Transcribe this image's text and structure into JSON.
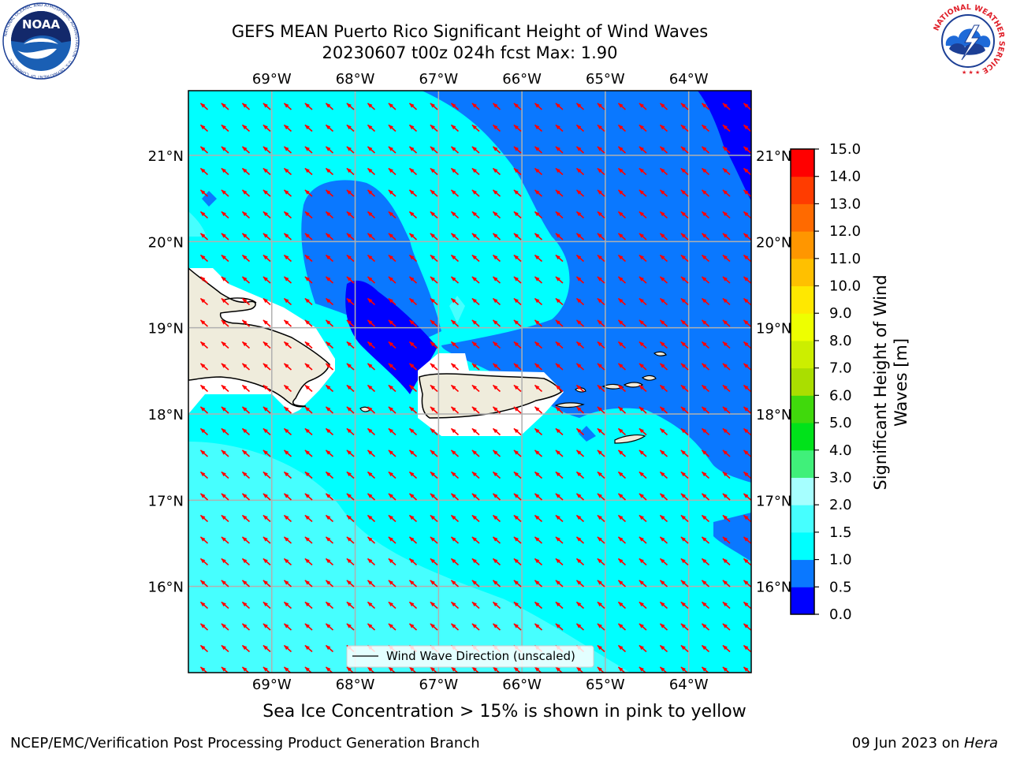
{
  "title_line1": "GEFS MEAN Puerto Rico Significant Height of Wind Waves",
  "title_line2": "20230607 t00z 024h fcst   Max: 1.90",
  "logos": {
    "left": {
      "name": "noaa-logo",
      "text": "NOAA",
      "ring": "NATIONAL OCEANIC AND ATMOSPHERIC ADMINISTRATION · U.S. DEPARTMENT OF COMMERCE"
    },
    "right": {
      "name": "nws-logo",
      "ring": "NATIONAL WEATHER SERVICE"
    }
  },
  "map": {
    "lon_labels": [
      "69°W",
      "68°W",
      "67°W",
      "66°W",
      "65°W",
      "64°W"
    ],
    "lon_values": [
      -69,
      -68,
      -67,
      -66,
      -65,
      -64
    ],
    "lat_labels": [
      "21°N",
      "20°N",
      "19°N",
      "18°N",
      "17°N",
      "16°N"
    ],
    "lat_values": [
      21,
      20,
      19,
      18,
      17,
      16
    ],
    "lon_range": [
      -70,
      -63.25
    ],
    "lat_range": [
      15,
      21.75
    ],
    "legend_label": "Wind Wave Direction (unscaled)",
    "arrow_color": "#ff0000",
    "land_color": "#efecdc",
    "grid_color": "#b0b0b0"
  },
  "colorbar": {
    "label": "Significant Height of Wind Waves [m]",
    "label_line1": "Significant Height of Wind",
    "label_line2": "Waves [m]",
    "ticks": [
      "0.0",
      "0.5",
      "1.0",
      "1.5",
      "2.0",
      "3.0",
      "4.0",
      "5.0",
      "6.0",
      "7.0",
      "8.0",
      "9.0",
      "10.0",
      "11.0",
      "12.0",
      "13.0",
      "14.0",
      "15.0"
    ],
    "colors": [
      "#0000ff",
      "#0a78ff",
      "#00ffff",
      "#46ffff",
      "#a6ffff",
      "#40f07a",
      "#00e21a",
      "#40d90c",
      "#aade00",
      "#ccee00",
      "#eeff00",
      "#ffe800",
      "#ffc000",
      "#ff9600",
      "#ff6a00",
      "#ff3c00",
      "#ff0000"
    ]
  },
  "sea_ice_note": "Sea Ice Concentration > 15% is shown in pink to yellow",
  "credit": "NCEP/EMC/Verification Post Processing Product Generation Branch",
  "date_prefix": "09 Jun 2023 on ",
  "date_host": "Hera"
}
